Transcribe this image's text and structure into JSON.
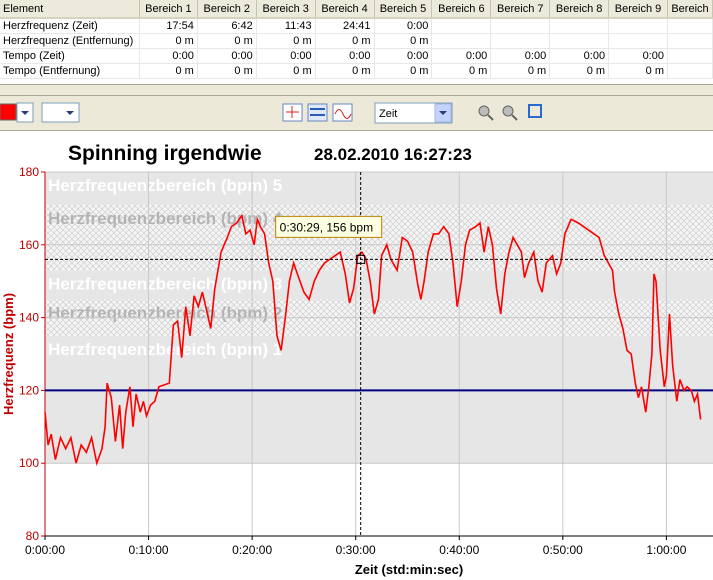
{
  "table": {
    "header": [
      "Element",
      "Bereich 1",
      "Bereich 2",
      "Bereich 3",
      "Bereich 4",
      "Bereich 5",
      "Bereich 6",
      "Bereich 7",
      "Bereich 8",
      "Bereich 9",
      "Bereich"
    ],
    "rows": [
      [
        "Herzfrequenz (Zeit)",
        "17:54",
        "6:42",
        "11:43",
        "24:41",
        "0:00"
      ],
      [
        "Herzfrequenz (Entfernung)",
        "0 m",
        "0 m",
        "0 m",
        "0 m",
        "0 m"
      ],
      [
        "Tempo (Zeit)",
        "0:00",
        "0:00",
        "0:00",
        "0:00",
        "0:00",
        "0:00",
        "0:00",
        "0:00",
        "0:00"
      ],
      [
        "Tempo (Entfernung)",
        "0 m",
        "0 m",
        "0 m",
        "0 m",
        "0 m",
        "0 m",
        "0 m",
        "0 m",
        "0 m"
      ]
    ]
  },
  "toolbar": {
    "select": "Zeit"
  },
  "chart_data": {
    "type": "line",
    "title": "Spinning irgendwie",
    "subtitle": "28.02.2010 16:27:23",
    "x_label": "Zeit (std:min:sec)",
    "y_label": "Herzfrequenz (bpm)",
    "color": "#ff0000",
    "grid": true,
    "xlim": [
      0,
      64.5
    ],
    "ylim": [
      80,
      180
    ],
    "xticks": [
      {
        "value": 0,
        "label": "0:00:00"
      },
      {
        "value": 10,
        "label": "0:10:00"
      },
      {
        "value": 20,
        "label": "0:20:00"
      },
      {
        "value": 30,
        "label": "0:30:00"
      },
      {
        "value": 40,
        "label": "0:40:00"
      },
      {
        "value": 50,
        "label": "0:50:00"
      },
      {
        "value": 60,
        "label": "1:00:00"
      }
    ],
    "yticks": [
      80,
      100,
      120,
      140,
      160,
      180
    ],
    "zones": [
      {
        "label": "Herzfrequenzbereich (bpm) 5",
        "from": 171,
        "to": 180,
        "hatched": false
      },
      {
        "label": "Herzfrequenzbereich (bpm) 4",
        "from": 153,
        "to": 171,
        "hatched": true
      },
      {
        "label": "Herzfrequenzbereich (bpm) 3",
        "from": 145,
        "to": 153,
        "hatched": false
      },
      {
        "label": "Herzfrequenzbereich (bpm) 2",
        "from": 135,
        "to": 145,
        "hatched": true
      },
      {
        "label": "Herzfrequenzbereich (bpm) 1",
        "from": 100,
        "to": 135,
        "hatched": false
      }
    ],
    "reference_line": {
      "value": 120,
      "color": "#000080"
    },
    "annotation": {
      "label": "0:30:29, 156 bpm",
      "x": 30.48,
      "y": 156
    },
    "x": [
      0,
      0.3,
      0.6,
      1.0,
      1.5,
      2.0,
      2.5,
      3.0,
      3.5,
      4.0,
      4.5,
      5.0,
      5.5,
      5.8,
      6.0,
      6.4,
      6.8,
      7.2,
      7.5,
      7.8,
      8.2,
      8.5,
      8.8,
      9.2,
      9.5,
      9.8,
      10.2,
      10.6,
      11.0,
      12.0,
      12.4,
      12.8,
      13.2,
      13.6,
      14.0,
      14.4,
      14.8,
      15.2,
      15.6,
      16.0,
      16.4,
      17.0,
      17.6,
      18.0,
      18.5,
      19.0,
      19.4,
      19.8,
      20.2,
      20.5,
      20.8,
      21.2,
      21.6,
      22.0,
      22.4,
      22.8,
      23.2,
      23.6,
      24.0,
      24.5,
      25.0,
      25.5,
      26.0,
      26.5,
      27.0,
      27.5,
      28.0,
      28.5,
      29.0,
      29.4,
      29.8,
      30.2,
      30.6,
      31.0,
      31.4,
      31.8,
      32.2,
      32.5,
      33.0,
      33.4,
      34.0,
      34.5,
      35.0,
      35.5,
      36.0,
      36.3,
      36.6,
      37.0,
      37.5,
      38.0,
      38.5,
      39.0,
      39.4,
      39.8,
      40.2,
      40.6,
      41.0,
      41.6,
      42.0,
      42.4,
      42.8,
      43.2,
      43.6,
      44.0,
      44.4,
      44.8,
      45.2,
      45.6,
      46.0,
      46.3,
      46.7,
      47.2,
      47.6,
      48.0,
      48.4,
      49.0,
      49.4,
      49.8,
      50.2,
      50.8,
      51.5,
      52.5,
      53.5,
      54.0,
      54.4,
      54.8,
      55.0,
      55.4,
      55.8,
      56.2,
      56.6,
      57.0,
      57.3,
      57.6,
      58.0,
      58.3,
      58.6,
      58.8,
      59.0,
      59.4,
      59.8,
      60.0,
      60.3,
      60.6,
      61.0,
      61.3,
      61.7,
      62.0,
      62.4,
      62.7,
      63.0,
      63.3
    ],
    "values": [
      114,
      105,
      108,
      101,
      107,
      104,
      107,
      100,
      105,
      103,
      107,
      100,
      104,
      110,
      122,
      118,
      106,
      116,
      104,
      114,
      121,
      110,
      119,
      114,
      117,
      113,
      116,
      117,
      121,
      122,
      138,
      139,
      129,
      143,
      135,
      146,
      143,
      147,
      142,
      137,
      148,
      158,
      162,
      165,
      166,
      168,
      163,
      164,
      160,
      167,
      165,
      163,
      155,
      150,
      135,
      131,
      140,
      150,
      155,
      151,
      147,
      145,
      150,
      153,
      155,
      156,
      157,
      158,
      152,
      144,
      148,
      157,
      158,
      156,
      150,
      141,
      145,
      157,
      160,
      156,
      153,
      162,
      161,
      158,
      149,
      145,
      150,
      158,
      163,
      163,
      165,
      163,
      155,
      143,
      150,
      160,
      164,
      165,
      166,
      158,
      165,
      160,
      148,
      141,
      152,
      158,
      162,
      160,
      158,
      151,
      155,
      158,
      150,
      147,
      155,
      157,
      152,
      155,
      163,
      167,
      166,
      164,
      162,
      157,
      155,
      153,
      147,
      141,
      137,
      131,
      130,
      122,
      118,
      121,
      114,
      121,
      130,
      152,
      150,
      131,
      121,
      124,
      141,
      127,
      117,
      123,
      120,
      121,
      120,
      117,
      119,
      112
    ]
  }
}
